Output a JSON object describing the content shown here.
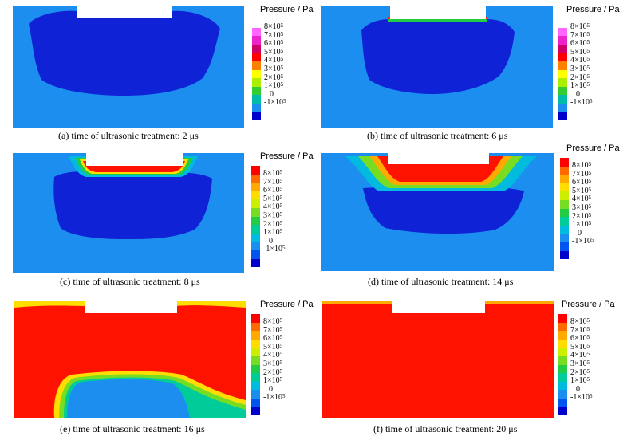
{
  "colors": {
    "background_fluid": "#1c8ef0",
    "cavitation_region": "#0f22d6",
    "high_pressure": "#ff1300",
    "gap": "#ffffff"
  },
  "legend": {
    "title": "Pressure / Pa",
    "ticks": [
      {
        "base": "8×10",
        "exp": "5"
      },
      {
        "base": "7×10",
        "exp": "5"
      },
      {
        "base": "6×10",
        "exp": "5"
      },
      {
        "base": "5×10",
        "exp": "5"
      },
      {
        "base": "4×10",
        "exp": "5"
      },
      {
        "base": "3×10",
        "exp": "5"
      },
      {
        "base": "2×10",
        "exp": "5"
      },
      {
        "base": "1×10",
        "exp": "5"
      },
      {
        "base": "0",
        "exp": ""
      },
      {
        "base": "-1×10",
        "exp": "5"
      }
    ],
    "colorscale_top_to_bottom_a_b": [
      "#ffffff",
      "#ff66ff",
      "#ee22cc",
      "#cc0066",
      "#ff0000",
      "#ff7f00",
      "#ffff00",
      "#aaee00",
      "#33cc33",
      "#00bbaa",
      "#1a8ff0",
      "#0000cc"
    ],
    "colorscale_top_to_bottom_c_f": [
      "#ff0000",
      "#ff6a00",
      "#ffaa00",
      "#ffdd00",
      "#ccee00",
      "#77dd22",
      "#22cc44",
      "#00cc99",
      "#00bbdd",
      "#1a8ff0",
      "#0055ee",
      "#0000cc"
    ]
  },
  "panels": [
    {
      "id": "a",
      "caption": "(a) time of ultrasonic treatment: 2 μs"
    },
    {
      "id": "b",
      "caption": "(b) time of ultrasonic treatment: 6 μs"
    },
    {
      "id": "c",
      "caption": "(c) time of ultrasonic treatment: 8 μs"
    },
    {
      "id": "d",
      "caption": "(d) time of ultrasonic treatment: 14 μs"
    },
    {
      "id": "e",
      "caption": "(e) time of ultrasonic treatment: 16 μs"
    },
    {
      "id": "f",
      "caption": "(f) time of ultrasonic treatment: 20 μs"
    }
  ]
}
